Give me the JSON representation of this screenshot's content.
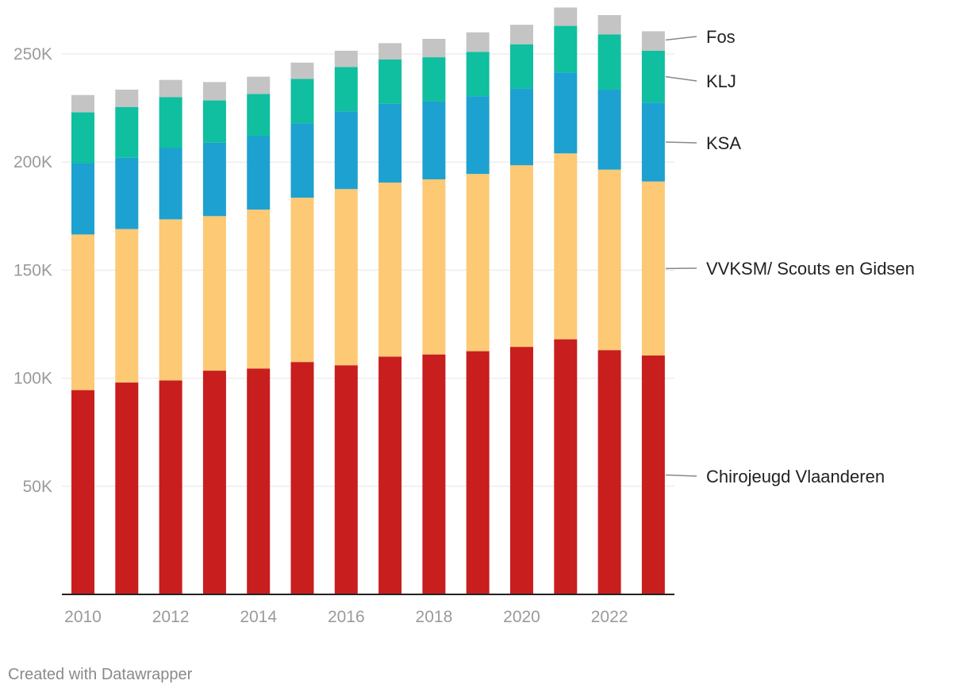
{
  "chart_data": {
    "type": "bar",
    "stacked": true,
    "title": "",
    "xlabel": "",
    "ylabel": "",
    "ylim": [
      0,
      275000
    ],
    "grid": true,
    "legend_placement": "right, inline labels",
    "categories": [
      "2010",
      "2011",
      "2012",
      "2013",
      "2014",
      "2015",
      "2016",
      "2017",
      "2018",
      "2019",
      "2020",
      "2021",
      "2022",
      "2023"
    ],
    "x_tick_labels": [
      "2010",
      "2012",
      "2014",
      "2016",
      "2018",
      "2020",
      "2022"
    ],
    "y_ticks": [
      50000,
      100000,
      150000,
      200000,
      250000
    ],
    "y_tick_labels": [
      "50K",
      "100K",
      "150K",
      "200K",
      "250K"
    ],
    "series": [
      {
        "name": "Chirojeugd Vlaanderen",
        "color": "#c81e1e",
        "values": [
          94500,
          98000,
          99000,
          103500,
          104500,
          107500,
          106000,
          110000,
          111000,
          112500,
          114500,
          118000,
          113000,
          110500
        ]
      },
      {
        "name": "VVKSM/ Scouts en Gidsen",
        "color": "#fdc975",
        "values": [
          72000,
          71000,
          74500,
          71500,
          73500,
          76000,
          81500,
          80500,
          81000,
          82000,
          84000,
          86000,
          83500,
          80500
        ]
      },
      {
        "name": "KSA",
        "color": "#1da1d0",
        "values": [
          33000,
          33000,
          33000,
          34000,
          34000,
          34500,
          36000,
          36500,
          36000,
          36000,
          35500,
          37500,
          37000,
          36500
        ]
      },
      {
        "name": "KLJ",
        "color": "#0fbf9f",
        "values": [
          23500,
          23500,
          23500,
          19500,
          19500,
          20500,
          20500,
          20500,
          20500,
          20500,
          20500,
          21500,
          25500,
          24000
        ]
      },
      {
        "name": "Fos",
        "color": "#c4c4c4",
        "values": [
          8000,
          8000,
          8000,
          8500,
          8000,
          7500,
          7500,
          7500,
          8500,
          9000,
          9000,
          8500,
          9000,
          9000
        ]
      }
    ]
  },
  "footer": {
    "credit": "Created with Datawrapper"
  },
  "colors": {
    "grid": "#e6e6e6",
    "axis": "#222222",
    "tick_text": "#9a9a9a",
    "leader_line": "#888888"
  }
}
